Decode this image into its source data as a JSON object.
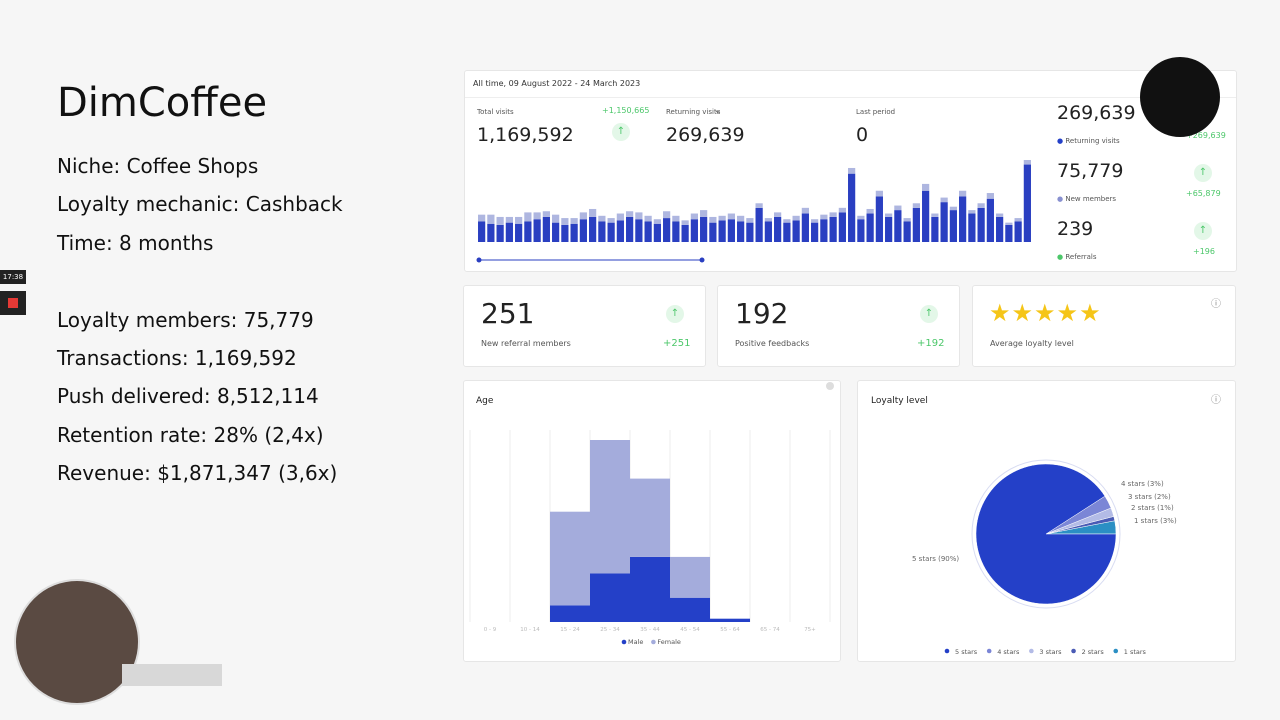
{
  "header": {
    "title": "DimCoffee",
    "facts": [
      "Niche: Coffee Shops",
      "Loyalty mechanic: Cashback",
      "Time: 8 months"
    ],
    "stats": [
      "Loyalty members: 75,779",
      "Transactions:  1,169,592",
      "Push delivered: 8,512,114",
      "Retention rate: 28% (2,4x)",
      "Revenue: $1,871,347 (3,6x)"
    ]
  },
  "recorder": {
    "time": "17:38"
  },
  "dashboard": {
    "period": "All time, 09 August 2022 - 24 March 2023",
    "kpis": [
      {
        "label": "Total visits",
        "value": "1,169,592",
        "delta": "+1,150,665"
      },
      {
        "label": "Returning visits",
        "value": "269,639"
      },
      {
        "label": "Last period",
        "value": "0"
      }
    ],
    "side_stats": [
      {
        "label": "Returning visits",
        "value": "269,639",
        "delta": "+269,639"
      },
      {
        "label": "New members",
        "value": "75,779",
        "delta": "+65,879"
      },
      {
        "label": "Referrals",
        "value": "239",
        "delta": "+196"
      }
    ],
    "cards": [
      {
        "label": "New referral members",
        "value": "251",
        "delta": "+251"
      },
      {
        "label": "Positive feedbacks",
        "value": "192",
        "delta": "+192"
      },
      {
        "label": "Average loyalty level"
      }
    ]
  },
  "chart_data": [
    {
      "type": "bar",
      "stacked": true,
      "series": [
        {
          "color": "#2a3fc1",
          "values": [
            18,
            16,
            15,
            17,
            16,
            18,
            20,
            22,
            17,
            15,
            16,
            20,
            22,
            18,
            17,
            19,
            22,
            20,
            18,
            16,
            21,
            18,
            15,
            20,
            22,
            17,
            19,
            20,
            18,
            17,
            30,
            18,
            22,
            17,
            19,
            25,
            17,
            20,
            22,
            26,
            60,
            20,
            25,
            40,
            22,
            28,
            18,
            30,
            45,
            22,
            35,
            28,
            40,
            25,
            30,
            38,
            22,
            15,
            18,
            68
          ]
        },
        {
          "color": "#aeb6e0",
          "values": [
            6,
            8,
            7,
            5,
            6,
            8,
            6,
            5,
            7,
            6,
            5,
            6,
            7,
            5,
            4,
            6,
            5,
            6,
            5,
            4,
            6,
            5,
            4,
            5,
            6,
            5,
            4,
            5,
            5,
            4,
            4,
            3,
            4,
            3,
            4,
            5,
            3,
            4,
            4,
            4,
            5,
            3,
            4,
            5,
            3,
            4,
            3,
            4,
            6,
            3,
            4,
            3,
            5,
            3,
            4,
            5,
            3,
            2,
            3,
            4
          ]
        }
      ]
    },
    {
      "type": "bar",
      "title": "Age",
      "stacked": true,
      "grid": true,
      "categories": [
        "0 - 9",
        "10 - 14",
        "15 - 24",
        "25 - 34",
        "35 - 44",
        "45 - 54",
        "55 - 64",
        "65 - 74",
        "75+"
      ],
      "series": [
        {
          "name": "Male",
          "color": "#2440c8",
          "values": [
            0,
            0,
            15,
            44,
            59,
            22,
            3,
            0,
            0
          ]
        },
        {
          "name": "Female",
          "color": "#a4acdc",
          "values": [
            0,
            0,
            85,
            121,
            71,
            37,
            0,
            0,
            0
          ]
        }
      ]
    },
    {
      "type": "pie",
      "title": "Loyalty level",
      "categories": [
        "5 stars",
        "4 stars",
        "3 stars",
        "2 stars",
        "1 stars"
      ],
      "values": [
        90,
        3,
        2,
        1,
        3
      ],
      "value_labels": [
        "5 stars (90%)",
        "4 stars (3%)",
        "3 stars (2%)",
        "2 stars (1%)",
        "1 stars (3%)"
      ],
      "colors": [
        "#2440c8",
        "#7b86d6",
        "#b3bbe6",
        "#4a5bb5",
        "#2b8fc4"
      ]
    }
  ]
}
